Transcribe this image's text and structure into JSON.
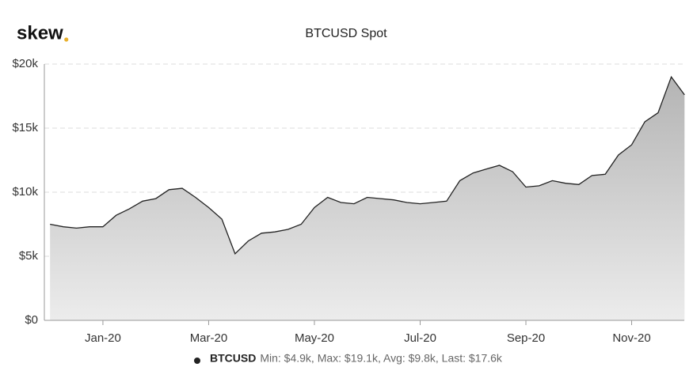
{
  "brand": "skew",
  "chart_data": {
    "type": "area",
    "title": "BTCUSD Spot",
    "categories": [
      null,
      null,
      null,
      null,
      "Jan-20",
      null,
      null,
      null,
      null,
      null,
      null,
      null,
      "Mar-20",
      null,
      null,
      null,
      null,
      null,
      null,
      null,
      "May-20",
      null,
      null,
      null,
      null,
      null,
      null,
      null,
      "Jul-20",
      null,
      null,
      null,
      null,
      null,
      null,
      null,
      "Sep-20",
      null,
      null,
      null,
      null,
      null,
      null,
      null,
      "Nov-20",
      null,
      null,
      null,
      null
    ],
    "series": [
      {
        "name": "BTCUSD",
        "color": "#222222",
        "values": [
          7500,
          7300,
          7200,
          7300,
          7300,
          8200,
          8700,
          9300,
          9500,
          10200,
          10300,
          9600,
          8800,
          7900,
          5200,
          6200,
          6800,
          6900,
          7100,
          7500,
          8800,
          9600,
          9200,
          9100,
          9600,
          9500,
          9400,
          9200,
          9100,
          9200,
          9300,
          10900,
          11500,
          11800,
          12100,
          11600,
          10400,
          10500,
          10900,
          10700,
          10600,
          11300,
          11400,
          12900,
          13700,
          15500,
          16200,
          19000,
          17600
        ]
      }
    ],
    "legend_summary": "Min: $4.9k, Max: $19.1k, Avg: $9.8k, Last: $17.6k",
    "ylim": [
      0,
      20000
    ],
    "yticks": [
      {
        "value": 0,
        "label": "$0"
      },
      {
        "value": 5000,
        "label": "$5k"
      },
      {
        "value": 10000,
        "label": "$10k"
      },
      {
        "value": 15000,
        "label": "$15k"
      },
      {
        "value": 20000,
        "label": "$20k"
      }
    ],
    "grid": true
  }
}
